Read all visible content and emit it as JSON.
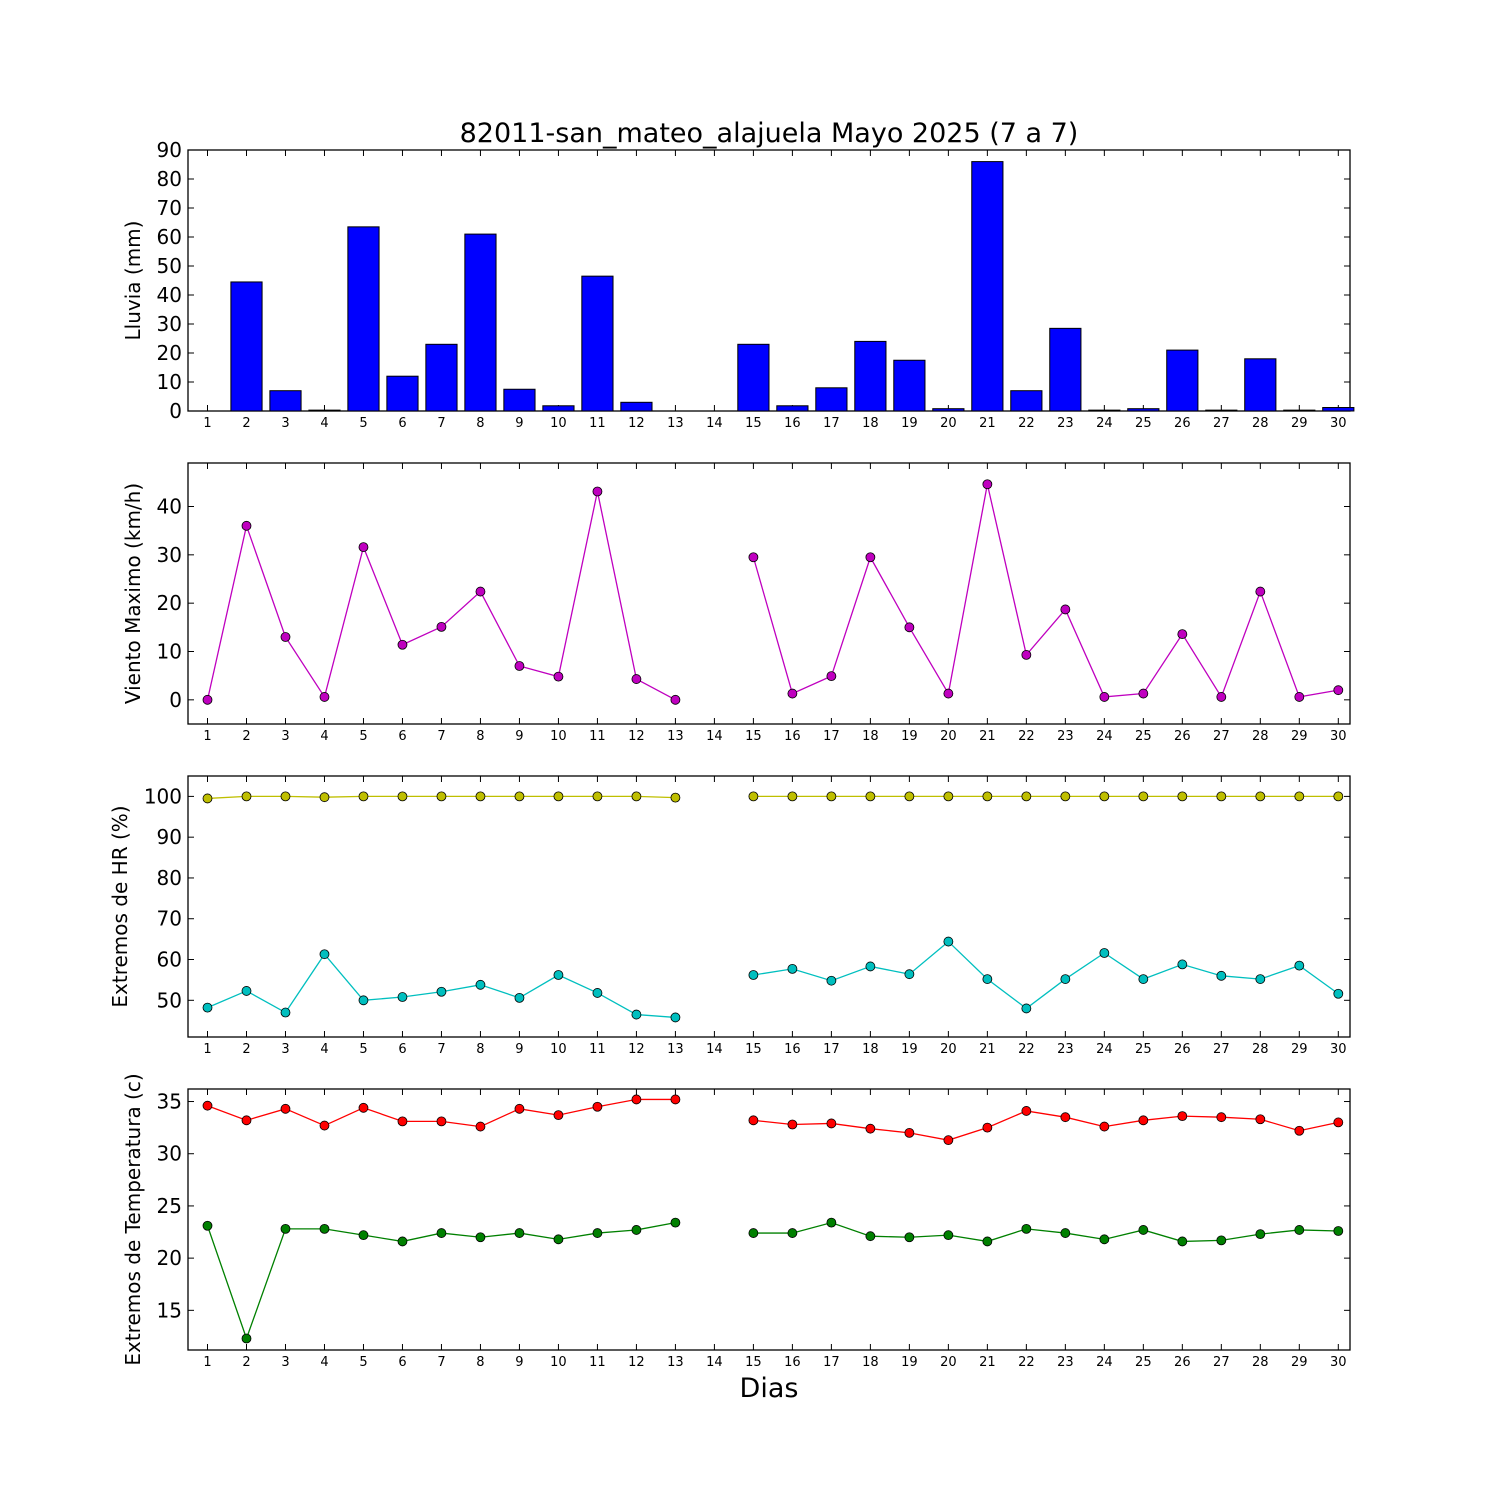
{
  "chart_data": [
    {
      "type": "bar",
      "title": "82011-san_mateo_alajuela Mayo 2025  (7 a 7)",
      "ylabel": "Lluvia (mm)",
      "categories": [
        "1",
        "2",
        "3",
        "4",
        "5",
        "6",
        "7",
        "8",
        "9",
        "10",
        "11",
        "12",
        "13",
        "14",
        "15",
        "16",
        "17",
        "18",
        "19",
        "20",
        "21",
        "22",
        "23",
        "24",
        "25",
        "26",
        "27",
        "28",
        "29",
        "30"
      ],
      "values": [
        0,
        44.5,
        7,
        0.3,
        63.5,
        12,
        23,
        61,
        7.5,
        1.8,
        46.5,
        3,
        0,
        0,
        23,
        1.8,
        8,
        24,
        17.5,
        0.8,
        86,
        7,
        28.5,
        0.3,
        0.8,
        21,
        0.3,
        18,
        0.3,
        1.2
      ],
      "ylim": [
        0,
        90
      ],
      "yticks": [
        0,
        10,
        20,
        30,
        40,
        50,
        60,
        70,
        80,
        90
      ],
      "color": "#0000ff"
    },
    {
      "type": "line",
      "ylabel": "Viento Maximo (km/h)",
      "categories": [
        "1",
        "2",
        "3",
        "4",
        "5",
        "6",
        "7",
        "8",
        "9",
        "10",
        "11",
        "12",
        "13",
        "14",
        "15",
        "16",
        "17",
        "18",
        "19",
        "20",
        "21",
        "22",
        "23",
        "24",
        "25",
        "26",
        "27",
        "28",
        "29",
        "30"
      ],
      "series": [
        {
          "color": "#bf00bf",
          "values": [
            0,
            36,
            13,
            0.6,
            31.6,
            11.4,
            15.1,
            22.4,
            7,
            4.8,
            43.1,
            4.3,
            0,
            null,
            29.5,
            1.3,
            4.9,
            29.5,
            15,
            1.3,
            44.6,
            9.3,
            18.7,
            0.6,
            1.3,
            13.6,
            0.6,
            22.4,
            0.6,
            2
          ]
        }
      ],
      "ylim": [
        -5,
        49
      ],
      "yticks": [
        0,
        10,
        20,
        30,
        40
      ]
    },
    {
      "type": "line",
      "ylabel": "Extremos de HR (%)",
      "categories": [
        "1",
        "2",
        "3",
        "4",
        "5",
        "6",
        "7",
        "8",
        "9",
        "10",
        "11",
        "12",
        "13",
        "14",
        "15",
        "16",
        "17",
        "18",
        "19",
        "20",
        "21",
        "22",
        "23",
        "24",
        "25",
        "26",
        "27",
        "28",
        "29",
        "30"
      ],
      "series": [
        {
          "color": "#bfbf00",
          "values": [
            99.5,
            100,
            100,
            99.8,
            100,
            100,
            100,
            100,
            100,
            100,
            100,
            100,
            99.7,
            null,
            100,
            100,
            100,
            100,
            100,
            100,
            100,
            100,
            100,
            100,
            100,
            100,
            100,
            100,
            100,
            100
          ]
        },
        {
          "color": "#00bfbf",
          "values": [
            48.2,
            52.3,
            47,
            61.3,
            50,
            50.8,
            52.1,
            53.8,
            50.6,
            56.2,
            51.8,
            46.5,
            45.8,
            null,
            56.2,
            57.7,
            54.8,
            58.3,
            56.4,
            64.4,
            55.2,
            48,
            55.2,
            61.6,
            55.2,
            58.8,
            56,
            55.2,
            58.5,
            51.6
          ]
        }
      ],
      "ylim": [
        41,
        105
      ],
      "yticks": [
        50,
        60,
        70,
        80,
        90,
        100
      ]
    },
    {
      "type": "line",
      "ylabel": "Extremos de Temperatura (c)",
      "xlabel": "Dias",
      "categories": [
        "1",
        "2",
        "3",
        "4",
        "5",
        "6",
        "7",
        "8",
        "9",
        "10",
        "11",
        "12",
        "13",
        "14",
        "15",
        "16",
        "17",
        "18",
        "19",
        "20",
        "21",
        "22",
        "23",
        "24",
        "25",
        "26",
        "27",
        "28",
        "29",
        "30"
      ],
      "series": [
        {
          "color": "#ff0000",
          "values": [
            34.6,
            33.2,
            34.3,
            32.7,
            34.4,
            33.1,
            33.1,
            32.6,
            34.3,
            33.7,
            34.5,
            35.2,
            35.2,
            null,
            33.2,
            32.8,
            32.9,
            32.4,
            32,
            31.3,
            32.5,
            34.1,
            33.5,
            32.6,
            33.2,
            33.6,
            33.5,
            33.3,
            32.2,
            33
          ]
        },
        {
          "color": "#008000",
          "values": [
            23.1,
            12.3,
            22.8,
            22.8,
            22.2,
            21.6,
            22.4,
            22,
            22.4,
            21.8,
            22.4,
            22.7,
            23.4,
            null,
            22.4,
            22.4,
            23.4,
            22.1,
            22,
            22.2,
            21.6,
            22.8,
            22.4,
            21.8,
            22.7,
            21.6,
            21.7,
            22.3,
            22.7,
            22.6
          ]
        }
      ],
      "ylim": [
        11.2,
        36.2
      ],
      "yticks": [
        15,
        20,
        25,
        30,
        35
      ]
    }
  ]
}
